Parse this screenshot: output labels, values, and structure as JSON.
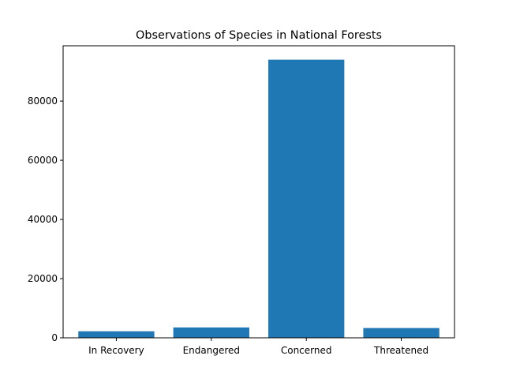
{
  "chart_data": {
    "type": "bar",
    "title": "Observations of Species in National Forests",
    "xlabel": "",
    "ylabel": "",
    "categories": [
      "In Recovery",
      "Endangered",
      "Concerned",
      "Threatened"
    ],
    "values": [
      2200,
      3500,
      94000,
      3300
    ],
    "ylim": [
      0,
      98700
    ],
    "yticks": [
      0,
      20000,
      40000,
      60000,
      80000
    ],
    "ytick_labels": [
      "0",
      "20000",
      "40000",
      "60000",
      "80000"
    ],
    "grid": false,
    "legend": "none",
    "bar_color": "#1f77b4"
  }
}
